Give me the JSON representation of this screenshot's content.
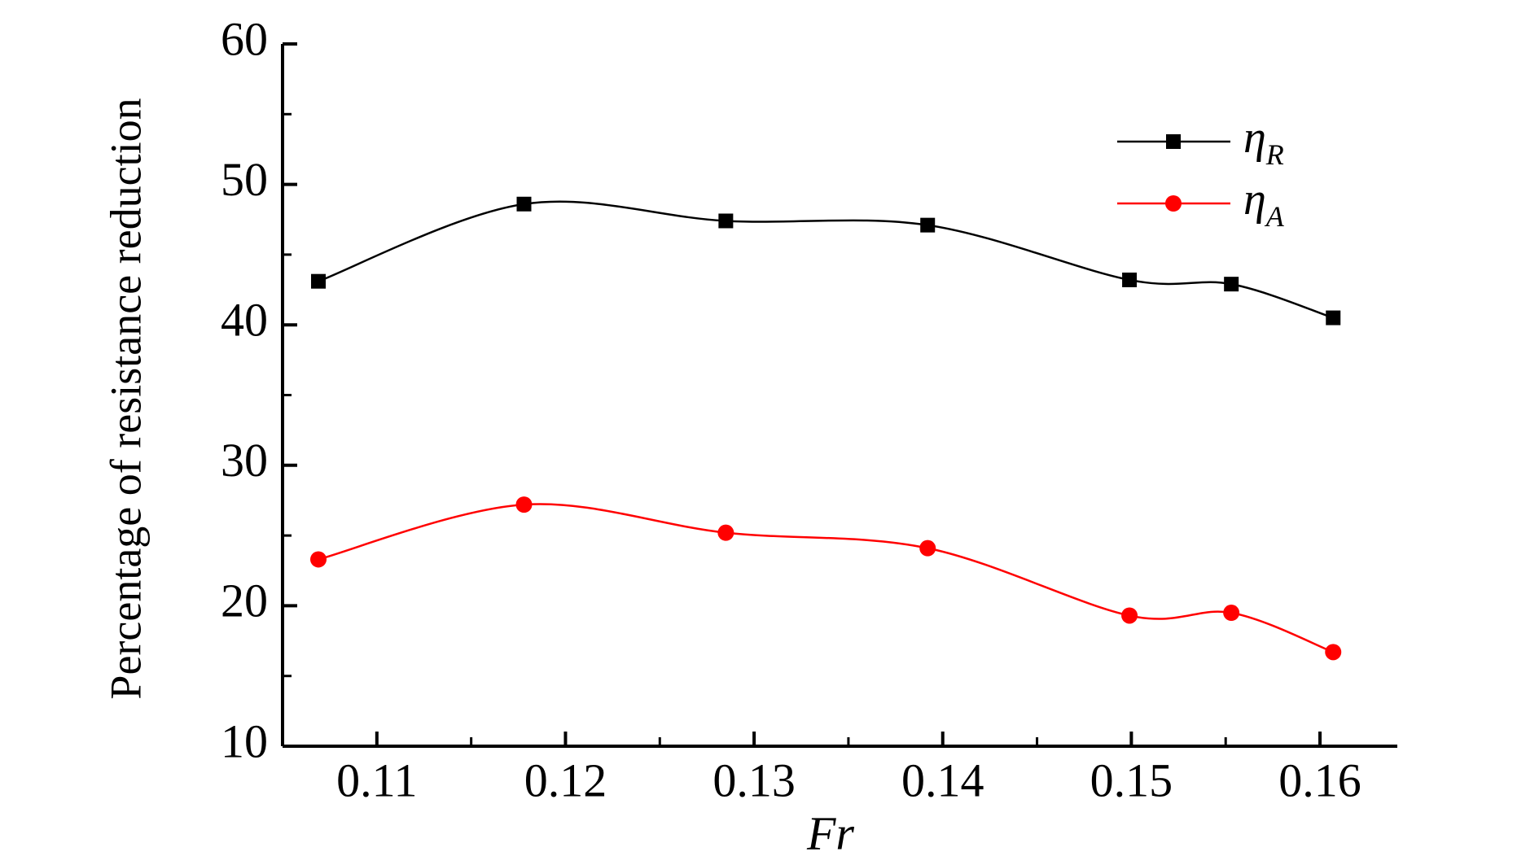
{
  "chart_data": {
    "type": "line",
    "x_label": "Fr",
    "y_label": "Percentage of resistance reduction",
    "x": [
      0.1069,
      0.1178,
      0.1285,
      0.1392,
      0.1499,
      0.1553,
      0.1607
    ],
    "series": [
      {
        "name": "ηR",
        "color": "#000000",
        "marker": "square",
        "values": [
          43.1,
          48.6,
          47.4,
          47.1,
          43.2,
          42.9,
          40.5
        ]
      },
      {
        "name": "ηA",
        "color": "#ff0000",
        "marker": "circle",
        "values": [
          23.3,
          27.2,
          25.2,
          24.1,
          19.3,
          19.5,
          16.7
        ]
      }
    ],
    "xlim": [
      0.105,
      0.1641
    ],
    "ylim": [
      10,
      60
    ],
    "xticks": [
      0.11,
      0.12,
      0.13,
      0.14,
      0.15,
      0.16
    ],
    "yticks": [
      10,
      20,
      30,
      40,
      50,
      60
    ],
    "xminorticks": [
      0.105,
      0.115,
      0.125,
      0.135,
      0.145,
      0.155
    ],
    "yminorticks": [
      15,
      25,
      35,
      45,
      55
    ],
    "smooth": true,
    "legend": "upper-right"
  }
}
